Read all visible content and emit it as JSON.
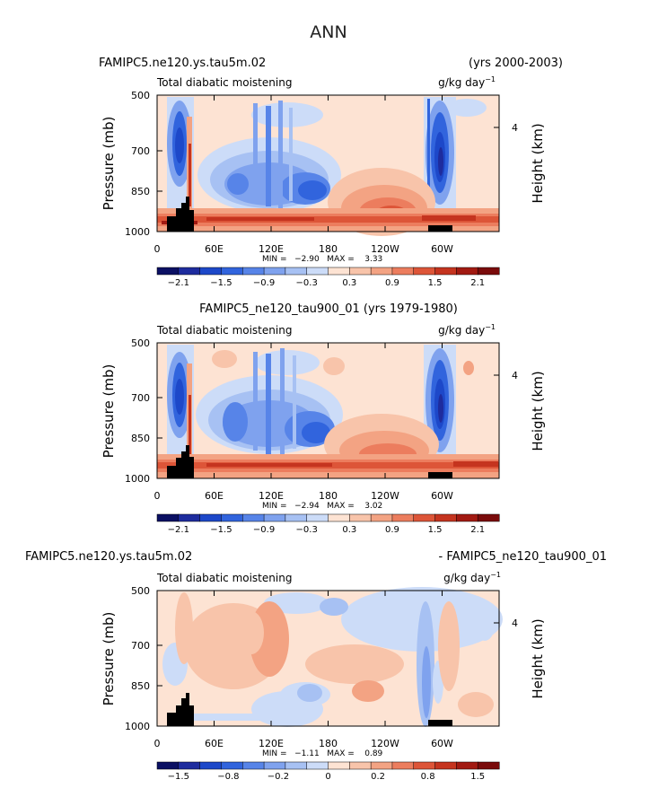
{
  "page_title": "ANN",
  "chart_data": [
    {
      "type": "heatmap",
      "case_label": "FAMIPC5.ne120.ys.tau5m.02",
      "years_label": "(yrs 2000-2003)",
      "variable": "Total diabatic moistening",
      "units": "g/kg day",
      "units_exp": "−1",
      "ylabel": "Pressure (mb)",
      "ylabel_right": "Height (km)",
      "x_ticks": [
        "0",
        "60E",
        "120E",
        "180",
        "120W",
        "60W"
      ],
      "y_ticks": [
        "500",
        "700",
        "850",
        "1000"
      ],
      "y_ticks_right": [
        "4"
      ],
      "stats": "MIN =   −2.90   MAX =    3.33",
      "min": -2.9,
      "max": 3.33,
      "colorbar_labels": [
        "−2.1",
        "−1.5",
        "−0.9",
        "−0.3",
        "0.3",
        "0.9",
        "1.5",
        "2.1"
      ],
      "colorbar_colors": [
        "#0b1063",
        "#1e2c9e",
        "#1d48c9",
        "#3164dd",
        "#5784e8",
        "#7fa2ee",
        "#a7c1f3",
        "#ccdcf8",
        "#fde3d3",
        "#f8c4aa",
        "#f3a383",
        "#ec7d5e",
        "#dd5538",
        "#c5341f",
        "#a21a12",
        "#7a0b0b"
      ]
    },
    {
      "type": "heatmap",
      "case_label": "FAMIPC5_ne120_tau900_01 (yrs 1979-1980)",
      "variable": "Total diabatic moistening",
      "units": "g/kg day",
      "units_exp": "−1",
      "ylabel": "Pressure (mb)",
      "ylabel_right": "Height (km)",
      "x_ticks": [
        "0",
        "60E",
        "120E",
        "180",
        "120W",
        "60W"
      ],
      "y_ticks": [
        "500",
        "700",
        "850",
        "1000"
      ],
      "y_ticks_right": [
        "4"
      ],
      "stats": "MIN =   −2.94   MAX =    3.02",
      "min": -2.94,
      "max": 3.02,
      "colorbar_labels": [
        "−2.1",
        "−1.5",
        "−0.9",
        "−0.3",
        "0.3",
        "0.9",
        "1.5",
        "2.1"
      ],
      "colorbar_colors": [
        "#0b1063",
        "#1e2c9e",
        "#1d48c9",
        "#3164dd",
        "#5784e8",
        "#7fa2ee",
        "#a7c1f3",
        "#ccdcf8",
        "#fde3d3",
        "#f8c4aa",
        "#f3a383",
        "#ec7d5e",
        "#dd5538",
        "#c5341f",
        "#a21a12",
        "#7a0b0b"
      ]
    },
    {
      "type": "heatmap",
      "case_label": "FAMIPC5.ne120.ys.tau5m.02",
      "diff_label": "- FAMIPC5_ne120_tau900_01",
      "variable": "Total diabatic moistening",
      "units": "g/kg day",
      "units_exp": "−1",
      "ylabel": "Pressure (mb)",
      "ylabel_right": "Height (km)",
      "x_ticks": [
        "0",
        "60E",
        "120E",
        "180",
        "120W",
        "60W"
      ],
      "y_ticks": [
        "500",
        "700",
        "850",
        "1000"
      ],
      "y_ticks_right": [
        "4"
      ],
      "stats": "MIN =   −1.11   MAX =    0.89",
      "min": -1.11,
      "max": 0.89,
      "colorbar_labels": [
        "−1.5",
        "−0.8",
        "−0.2",
        "0",
        "0.2",
        "0.8",
        "1.5"
      ],
      "colorbar_colors": [
        "#0b1063",
        "#1e2c9e",
        "#1d48c9",
        "#3164dd",
        "#5784e8",
        "#7fa2ee",
        "#a7c1f3",
        "#ccdcf8",
        "#fde3d3",
        "#f8c4aa",
        "#f3a383",
        "#ec7d5e",
        "#dd5538",
        "#c5341f",
        "#a21a12",
        "#7a0b0b"
      ]
    }
  ]
}
